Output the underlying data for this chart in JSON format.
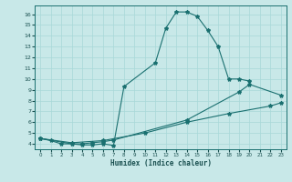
{
  "xlabel": "Humidex (Indice chaleur)",
  "bg_color": "#c8e8e8",
  "line_color": "#1a7070",
  "grid_color": "#a8d8d8",
  "xlim": [
    -0.5,
    23.5
  ],
  "ylim": [
    3.5,
    16.8
  ],
  "xticks": [
    0,
    1,
    2,
    3,
    4,
    5,
    6,
    7,
    8,
    9,
    10,
    11,
    12,
    13,
    14,
    15,
    16,
    17,
    18,
    19,
    20,
    21,
    22,
    23
  ],
  "yticks": [
    4,
    5,
    6,
    7,
    8,
    9,
    10,
    11,
    12,
    13,
    14,
    15,
    16
  ],
  "curve1_x": [
    0,
    1,
    2,
    3,
    4,
    5,
    6,
    7,
    8,
    11,
    12,
    13,
    14,
    15,
    16,
    17,
    18,
    19,
    20
  ],
  "curve1_y": [
    4.5,
    4.3,
    4.0,
    4.0,
    3.9,
    3.9,
    4.0,
    3.85,
    9.3,
    11.5,
    14.7,
    16.2,
    16.2,
    15.8,
    14.5,
    13.0,
    10.0,
    10.0,
    9.8
  ],
  "curve2_x": [
    0,
    3,
    4,
    5,
    6,
    7,
    14,
    19,
    20,
    23
  ],
  "curve2_y": [
    4.5,
    4.0,
    4.0,
    4.1,
    4.2,
    4.35,
    6.2,
    8.8,
    9.5,
    8.5
  ],
  "curve3_x": [
    0,
    3,
    6,
    10,
    14,
    18,
    22,
    23
  ],
  "curve3_y": [
    4.5,
    4.1,
    4.3,
    5.0,
    6.0,
    6.8,
    7.5,
    7.8
  ]
}
